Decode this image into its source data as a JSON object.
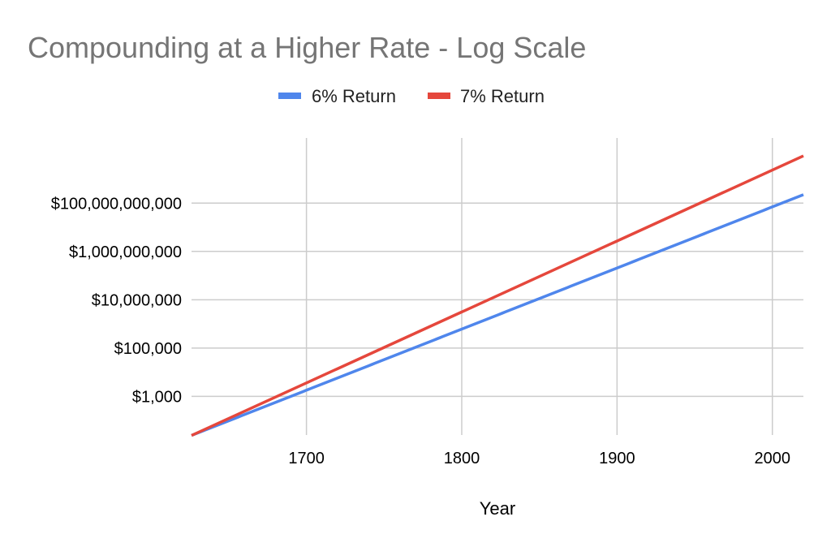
{
  "chart_data": {
    "type": "line",
    "title": "Compounding at a Higher Rate - Log Scale",
    "xlabel": "Year",
    "ylabel": "",
    "y_scale": "log",
    "xlim": [
      1626,
      2020
    ],
    "ylim": [
      25,
      50000000000000
    ],
    "x_ticks": [
      1700,
      1800,
      1900,
      2000
    ],
    "y_ticks": [
      {
        "value": 1000,
        "label": "$1,000"
      },
      {
        "value": 100000,
        "label": "$100,000"
      },
      {
        "value": 10000000,
        "label": "$10,000,000"
      },
      {
        "value": 1000000000,
        "label": "$1,000,000,000"
      },
      {
        "value": 100000000000,
        "label": "$100,000,000,000"
      }
    ],
    "legend_position": "top",
    "series": [
      {
        "name": "6% Return",
        "color": "#4f86ec",
        "start_year": 1626,
        "start_value": 24,
        "rate": 0.06
      },
      {
        "name": "7% Return",
        "color": "#e5473c",
        "start_year": 1626,
        "start_value": 24,
        "rate": 0.07
      }
    ]
  }
}
